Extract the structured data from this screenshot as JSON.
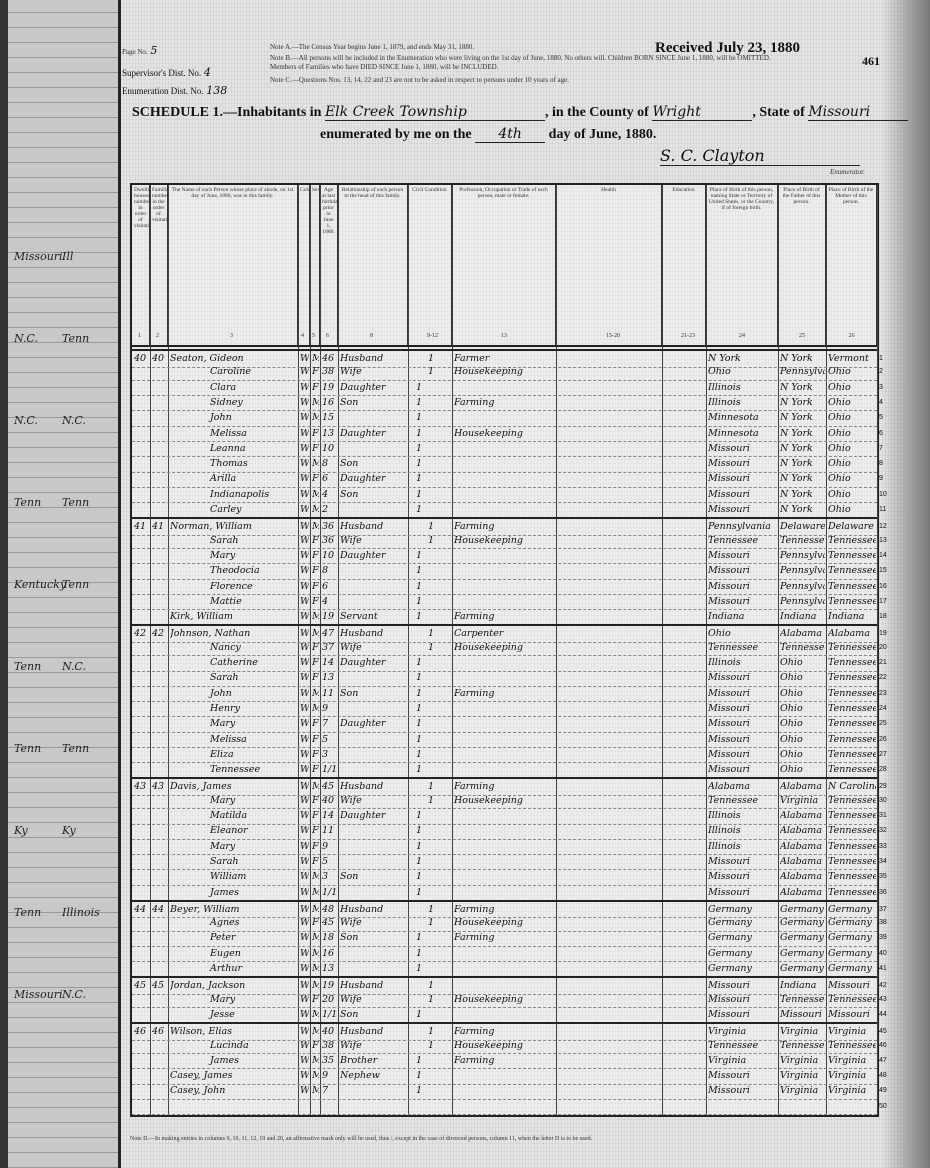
{
  "header": {
    "page_label": "Page No.",
    "page_no": "5",
    "supervisor_label": "Supervisor's Dist. No.",
    "supervisor_no": "4",
    "enumeration_label": "Enumeration Dist. No.",
    "enumeration_no": "138",
    "note_a": "Note A.—The Census Year begins June 1, 1879, and ends May 31, 1880.",
    "note_b": "Note B.—All persons will be included in the Enumeration who were living on the 1st day of June, 1880. No others will. Children BORN SINCE June 1, 1880, will be OMITTED. Members of Families who have DIED SINCE June 1, 1880, will be INCLUDED.",
    "note_c": "Note C.—Questions Nos. 13, 14, 22 and 23 are not to be asked in respect to persons under 10 years of age.",
    "stamp": "Received July 23, 1880",
    "sheet_number": "461",
    "schedule_title": "SCHEDULE 1.—Inhabitants in",
    "township": "Elk Creek Township",
    "county_label": ", in the County of",
    "county": "Wright",
    "state_label": ", State of",
    "state": "Missouri",
    "enumerated_label": "enumerated by me on the",
    "day": "4th",
    "day_suffix": "day of June, 1880.",
    "enumerator_signature": "S. C. Clayton",
    "enumerator_label": "Enumerator."
  },
  "left_fragment": [
    "Missouri",
    "Ill",
    "N.C.",
    "Tenn",
    "N.C.",
    "N.C.",
    "Tenn",
    "Tenn",
    "Kentucky",
    "Tenn",
    "Tenn",
    "N.C.",
    "Tenn",
    "Tenn",
    "Ky",
    "Ky",
    "Tenn",
    "Illinois",
    "Missouri",
    "N.C."
  ],
  "columns": [
    {
      "num": "1",
      "label": "Dwelling houses numbered in order of visitation."
    },
    {
      "num": "2",
      "label": "Families numbered in the order of visitation."
    },
    {
      "num": "3",
      "label": "The Name of each Person whose place of abode, on 1st day of June, 1880, was in this family."
    },
    {
      "num": "4",
      "label": "Color"
    },
    {
      "num": "5",
      "label": "Sex"
    },
    {
      "num": "6",
      "label": "Age at last birthday prior to June 1, 1880."
    },
    {
      "num": "8",
      "label": "Relationship of each person to the head of this family."
    },
    {
      "num": "9-12",
      "label": "Civil Condition"
    },
    {
      "num": "13",
      "label": "Profession, Occupation or Trade of each person, male or female."
    },
    {
      "num": "15-20",
      "label": "Health"
    },
    {
      "num": "21-23",
      "label": "Education"
    },
    {
      "num": "24",
      "label": "Place of Birth of this person, naming State or Territory of United States, or the Country, if of foreign birth."
    },
    {
      "num": "25",
      "label": "Place of Birth of the Father of this person."
    },
    {
      "num": "26",
      "label": "Place of Birth of the Mother of this person."
    }
  ],
  "rows": [
    {
      "d": "40",
      "f": "40",
      "name": "Seaton, Gideon",
      "color": "W",
      "sex": "M",
      "age": "46",
      "rel": "Husband",
      "civ": "1",
      "occ": "Farmer",
      "bp": "N York",
      "fbp": "N York",
      "mbp": "Vermont"
    },
    {
      "name": "Caroline",
      "color": "W",
      "sex": "F",
      "age": "38",
      "rel": "Wife",
      "civ": "1",
      "occ": "Housekeeping",
      "bp": "Ohio",
      "fbp": "Pennsylvania",
      "mbp": "Ohio"
    },
    {
      "name": "Clara",
      "color": "W",
      "sex": "F",
      "age": "19",
      "rel": "Daughter",
      "civ": "1",
      "occ": "",
      "bp": "Illinois",
      "fbp": "N York",
      "mbp": "Ohio"
    },
    {
      "name": "Sidney",
      "color": "W",
      "sex": "M",
      "age": "16",
      "rel": "Son",
      "civ": "1",
      "occ": "Farming",
      "bp": "Illinois",
      "fbp": "N York",
      "mbp": "Ohio"
    },
    {
      "name": "John",
      "color": "W",
      "sex": "M",
      "age": "15",
      "rel": "",
      "civ": "1",
      "occ": "",
      "bp": "Minnesota",
      "fbp": "N York",
      "mbp": "Ohio"
    },
    {
      "name": "Melissa",
      "color": "W",
      "sex": "F",
      "age": "13",
      "rel": "Daughter",
      "civ": "1",
      "occ": "Housekeeping",
      "bp": "Minnesota",
      "fbp": "N York",
      "mbp": "Ohio"
    },
    {
      "name": "Leanna",
      "color": "W",
      "sex": "F",
      "age": "10",
      "rel": "",
      "civ": "1",
      "occ": "",
      "bp": "Missouri",
      "fbp": "N York",
      "mbp": "Ohio"
    },
    {
      "name": "Thomas",
      "color": "W",
      "sex": "M",
      "age": "8",
      "rel": "Son",
      "civ": "1",
      "occ": "",
      "bp": "Missouri",
      "fbp": "N York",
      "mbp": "Ohio"
    },
    {
      "name": "Arilla",
      "color": "W",
      "sex": "F",
      "age": "6",
      "rel": "Daughter",
      "civ": "1",
      "occ": "",
      "bp": "Missouri",
      "fbp": "N York",
      "mbp": "Ohio"
    },
    {
      "name": "Indianapolis",
      "color": "W",
      "sex": "M",
      "age": "4",
      "rel": "Son",
      "civ": "1",
      "occ": "",
      "bp": "Missouri",
      "fbp": "N York",
      "mbp": "Ohio"
    },
    {
      "name": "Carley",
      "color": "W",
      "sex": "M",
      "age": "2",
      "rel": "",
      "civ": "1",
      "occ": "",
      "bp": "Missouri",
      "fbp": "N York",
      "mbp": "Ohio"
    },
    {
      "d": "41",
      "f": "41",
      "name": "Norman, William",
      "color": "W",
      "sex": "M",
      "age": "36",
      "rel": "Husband",
      "civ": "1",
      "occ": "Farming",
      "bp": "Pennsylvania",
      "fbp": "Delaware",
      "mbp": "Delaware"
    },
    {
      "name": "Sarah",
      "color": "W",
      "sex": "F",
      "age": "36",
      "rel": "Wife",
      "civ": "1",
      "occ": "Housekeeping",
      "bp": "Tennessee",
      "fbp": "Tennessee",
      "mbp": "Tennessee"
    },
    {
      "name": "Mary",
      "color": "W",
      "sex": "F",
      "age": "10",
      "rel": "Daughter",
      "civ": "1",
      "occ": "",
      "bp": "Missouri",
      "fbp": "Pennsylvania",
      "mbp": "Tennessee"
    },
    {
      "name": "Theodocia",
      "color": "W",
      "sex": "F",
      "age": "8",
      "rel": "",
      "civ": "1",
      "occ": "",
      "bp": "Missouri",
      "fbp": "Pennsylvania",
      "mbp": "Tennessee"
    },
    {
      "name": "Florence",
      "color": "W",
      "sex": "F",
      "age": "6",
      "rel": "",
      "civ": "1",
      "occ": "",
      "bp": "Missouri",
      "fbp": "Pennsylvania",
      "mbp": "Tennessee"
    },
    {
      "name": "Mattie",
      "color": "W",
      "sex": "F",
      "age": "4",
      "rel": "",
      "civ": "1",
      "occ": "",
      "bp": "Missouri",
      "fbp": "Pennsylvania",
      "mbp": "Tennessee"
    },
    {
      "name": "Kirk, William",
      "color": "W",
      "sex": "M",
      "age": "19",
      "rel": "Servant",
      "civ": "1",
      "occ": "Farming",
      "bp": "Indiana",
      "fbp": "Indiana",
      "mbp": "Indiana"
    },
    {
      "d": "42",
      "f": "42",
      "name": "Johnson, Nathan",
      "color": "W",
      "sex": "M",
      "age": "47",
      "rel": "Husband",
      "civ": "1",
      "occ": "Carpenter",
      "bp": "Ohio",
      "fbp": "Alabama",
      "mbp": "Alabama"
    },
    {
      "name": "Nancy",
      "color": "W",
      "sex": "F",
      "age": "37",
      "rel": "Wife",
      "civ": "1",
      "occ": "Housekeeping",
      "bp": "Tennessee",
      "fbp": "Tennessee",
      "mbp": "Tennessee"
    },
    {
      "name": "Catherine",
      "color": "W",
      "sex": "F",
      "age": "14",
      "rel": "Daughter",
      "civ": "1",
      "occ": "",
      "bp": "Illinois",
      "fbp": "Ohio",
      "mbp": "Tennessee"
    },
    {
      "name": "Sarah",
      "color": "W",
      "sex": "F",
      "age": "13",
      "rel": "",
      "civ": "1",
      "occ": "",
      "bp": "Missouri",
      "fbp": "Ohio",
      "mbp": "Tennessee"
    },
    {
      "name": "John",
      "color": "W",
      "sex": "M",
      "age": "11",
      "rel": "Son",
      "civ": "1",
      "occ": "Farming",
      "bp": "Missouri",
      "fbp": "Ohio",
      "mbp": "Tennessee"
    },
    {
      "name": "Henry",
      "color": "W",
      "sex": "M",
      "age": "9",
      "rel": "",
      "civ": "1",
      "occ": "",
      "bp": "Missouri",
      "fbp": "Ohio",
      "mbp": "Tennessee"
    },
    {
      "name": "Mary",
      "color": "W",
      "sex": "F",
      "age": "7",
      "rel": "Daughter",
      "civ": "1",
      "occ": "",
      "bp": "Missouri",
      "fbp": "Ohio",
      "mbp": "Tennessee"
    },
    {
      "name": "Melissa",
      "color": "W",
      "sex": "F",
      "age": "5",
      "rel": "",
      "civ": "1",
      "occ": "",
      "bp": "Missouri",
      "fbp": "Ohio",
      "mbp": "Tennessee"
    },
    {
      "name": "Eliza",
      "color": "W",
      "sex": "F",
      "age": "3",
      "rel": "",
      "civ": "1",
      "occ": "",
      "bp": "Missouri",
      "fbp": "Ohio",
      "mbp": "Tennessee"
    },
    {
      "name": "Tennessee",
      "color": "W",
      "sex": "F",
      "age": "1/12",
      "rel": "",
      "civ": "1",
      "occ": "",
      "bp": "Missouri",
      "fbp": "Ohio",
      "mbp": "Tennessee"
    },
    {
      "d": "43",
      "f": "43",
      "name": "Davis, James",
      "color": "W",
      "sex": "M",
      "age": "45",
      "rel": "Husband",
      "civ": "1",
      "occ": "Farming",
      "bp": "Alabama",
      "fbp": "Alabama",
      "mbp": "N Carolina"
    },
    {
      "name": "Mary",
      "color": "W",
      "sex": "F",
      "age": "40",
      "rel": "Wife",
      "civ": "1",
      "occ": "Housekeeping",
      "bp": "Tennessee",
      "fbp": "Virginia",
      "mbp": "Tennessee"
    },
    {
      "name": "Matilda",
      "color": "W",
      "sex": "F",
      "age": "14",
      "rel": "Daughter",
      "civ": "1",
      "occ": "",
      "bp": "Illinois",
      "fbp": "Alabama",
      "mbp": "Tennessee"
    },
    {
      "name": "Eleanor",
      "color": "W",
      "sex": "F",
      "age": "11",
      "rel": "",
      "civ": "1",
      "occ": "",
      "bp": "Illinois",
      "fbp": "Alabama",
      "mbp": "Tennessee"
    },
    {
      "name": "Mary",
      "color": "W",
      "sex": "F",
      "age": "9",
      "rel": "",
      "civ": "1",
      "occ": "",
      "bp": "Illinois",
      "fbp": "Alabama",
      "mbp": "Tennessee"
    },
    {
      "name": "Sarah",
      "color": "W",
      "sex": "F",
      "age": "5",
      "rel": "",
      "civ": "1",
      "occ": "",
      "bp": "Missouri",
      "fbp": "Alabama",
      "mbp": "Tennessee"
    },
    {
      "name": "William",
      "color": "W",
      "sex": "M",
      "age": "3",
      "rel": "Son",
      "civ": "1",
      "occ": "",
      "bp": "Missouri",
      "fbp": "Alabama",
      "mbp": "Tennessee"
    },
    {
      "name": "James",
      "color": "W",
      "sex": "M",
      "age": "1/12",
      "rel": "",
      "civ": "1",
      "occ": "",
      "bp": "Missouri",
      "fbp": "Alabama",
      "mbp": "Tennessee"
    },
    {
      "d": "44",
      "f": "44",
      "name": "Beyer, William",
      "color": "W",
      "sex": "M",
      "age": "48",
      "rel": "Husband",
      "civ": "1",
      "occ": "Farming",
      "bp": "Germany",
      "fbp": "Germany",
      "mbp": "Germany"
    },
    {
      "name": "Agnes",
      "color": "W",
      "sex": "F",
      "age": "45",
      "rel": "Wife",
      "civ": "1",
      "occ": "Housekeeping",
      "bp": "Germany",
      "fbp": "Germany",
      "mbp": "Germany"
    },
    {
      "name": "Peter",
      "color": "W",
      "sex": "M",
      "age": "18",
      "rel": "Son",
      "civ": "1",
      "occ": "Farming",
      "bp": "Germany",
      "fbp": "Germany",
      "mbp": "Germany"
    },
    {
      "name": "Eugen",
      "color": "W",
      "sex": "M",
      "age": "16",
      "rel": "",
      "civ": "1",
      "occ": "",
      "bp": "Germany",
      "fbp": "Germany",
      "mbp": "Germany"
    },
    {
      "name": "Arthur",
      "color": "W",
      "sex": "M",
      "age": "13",
      "rel": "",
      "civ": "1",
      "occ": "",
      "bp": "Germany",
      "fbp": "Germany",
      "mbp": "Germany"
    },
    {
      "d": "45",
      "f": "45",
      "name": "Jordan, Jackson",
      "color": "W",
      "sex": "M",
      "age": "19",
      "rel": "Husband",
      "civ": "1",
      "occ": "",
      "bp": "Missouri",
      "fbp": "Indiana",
      "mbp": "Missouri"
    },
    {
      "name": "Mary",
      "color": "W",
      "sex": "F",
      "age": "20",
      "rel": "Wife",
      "civ": "1",
      "occ": "Housekeeping",
      "bp": "Missouri",
      "fbp": "Tennessee",
      "mbp": "Tennessee"
    },
    {
      "name": "Jesse",
      "color": "W",
      "sex": "M",
      "age": "1/12",
      "rel": "Son",
      "civ": "1",
      "occ": "",
      "bp": "Missouri",
      "fbp": "Missouri",
      "mbp": "Missouri"
    },
    {
      "d": "46",
      "f": "46",
      "name": "Wilson, Elias",
      "color": "W",
      "sex": "M",
      "age": "40",
      "rel": "Husband",
      "civ": "1",
      "occ": "Farming",
      "bp": "Virginia",
      "fbp": "Virginia",
      "mbp": "Virginia"
    },
    {
      "name": "Lucinda",
      "color": "W",
      "sex": "F",
      "age": "38",
      "rel": "Wife",
      "civ": "1",
      "occ": "Housekeeping",
      "bp": "Tennessee",
      "fbp": "Tennessee",
      "mbp": "Tennessee"
    },
    {
      "name": "James",
      "color": "W",
      "sex": "M",
      "age": "35",
      "rel": "Brother",
      "civ": "1",
      "occ": "Farming",
      "bp": "Virginia",
      "fbp": "Virginia",
      "mbp": "Virginia"
    },
    {
      "name": "Casey, James",
      "color": "W",
      "sex": "M",
      "age": "9",
      "rel": "Nephew",
      "civ": "1",
      "occ": "",
      "bp": "Missouri",
      "fbp": "Virginia",
      "mbp": "Virginia"
    },
    {
      "name": "Casey, John",
      "color": "W",
      "sex": "M",
      "age": "7",
      "rel": "",
      "civ": "1",
      "occ": "",
      "bp": "Missouri",
      "fbp": "Virginia",
      "mbp": "Virginia"
    },
    {
      "name": "",
      "color": "",
      "sex": "",
      "age": "",
      "rel": "",
      "civ": "",
      "occ": "",
      "bp": "",
      "fbp": "",
      "mbp": ""
    }
  ],
  "footer_note": "Note D.—In making entries in columns 9, 10, 11, 12, 19 and 20, an affirmative mark only will be used, thus /, except in the case of divorced persons, column 11, when the letter D is to be used."
}
